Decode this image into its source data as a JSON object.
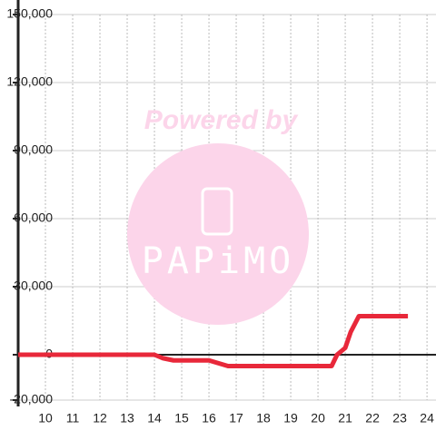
{
  "chart_data": {
    "type": "line",
    "watermark": [
      "Powered by",
      "PAPiMO"
    ],
    "x": [
      9,
      14,
      14.3,
      14.7,
      16,
      16.7,
      20.5,
      20.7,
      21,
      21.2,
      21.5,
      23.3
    ],
    "series": [
      {
        "color": "#e8283a",
        "values": [
          0,
          0,
          -1500,
          -2500,
          -2500,
          -5000,
          -5000,
          0,
          3000,
          10000,
          17000,
          17000
        ]
      }
    ],
    "xlim": [
      9,
      24.33
    ],
    "xticks": [
      10,
      11,
      12,
      13,
      14,
      15,
      16,
      17,
      18,
      19,
      20,
      21,
      22,
      23,
      24
    ],
    "ylim": [
      -20000,
      150000
    ],
    "yticks": [
      {
        "value": 150000,
        "label": "150,000"
      },
      {
        "value": 120000,
        "label": "120,000"
      },
      {
        "value": 90000,
        "label": "90,000"
      },
      {
        "value": 60000,
        "label": "60,000"
      },
      {
        "value": 30000,
        "label": "30,000"
      },
      0,
      {
        "value": -20000,
        "label": "-20,000"
      }
    ],
    "grid": true
  }
}
